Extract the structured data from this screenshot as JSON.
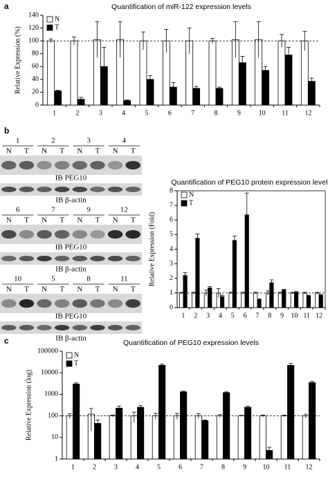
{
  "panels": [
    "a",
    "b",
    "c"
  ],
  "blot": {
    "groups": [
      {
        "numbers": [
          "1",
          "2",
          "3",
          "4"
        ],
        "lanes": [
          "N",
          "T",
          "N",
          "T",
          "N",
          "T",
          "N",
          "T"
        ],
        "target": "IB PEG10",
        "control": "IB β-actin"
      },
      {
        "numbers": [
          "6",
          "7",
          "9",
          "12"
        ],
        "lanes": [
          "N",
          "T",
          "N",
          "T",
          "N",
          "T",
          "N",
          "T"
        ],
        "target": "IB PEG10",
        "control": "IB β-actin"
      },
      {
        "numbers": [
          "10",
          "5",
          "8",
          "11"
        ],
        "lanes": [
          "N",
          "T",
          "N",
          "T",
          "N",
          "T",
          "N",
          "T"
        ],
        "target": "IB PEG10",
        "control": "IB β-actin"
      }
    ]
  },
  "chart_data": [
    {
      "type": "bar",
      "title": "Quantification of miR-122 expression levels",
      "y_label": "Relative Expression (%)",
      "categories": [
        "1",
        "2",
        "3",
        "4",
        "5",
        "6",
        "7",
        "8",
        "9",
        "10",
        "11",
        "12"
      ],
      "series": [
        {
          "name": "N",
          "color": "#ffffff",
          "values": [
            100,
            100,
            102,
            102,
            100,
            100,
            100,
            100,
            102,
            102,
            100,
            100
          ],
          "errors": [
            3,
            6,
            28,
            28,
            14,
            18,
            20,
            4,
            28,
            28,
            10,
            15
          ]
        },
        {
          "name": "T",
          "color": "#000000",
          "values": [
            22,
            9,
            60,
            7,
            40,
            28,
            26,
            26,
            66,
            54,
            78,
            37
          ],
          "errors": [
            1,
            3,
            30,
            1,
            6,
            7,
            3,
            2,
            10,
            6,
            12,
            5
          ]
        }
      ],
      "ylim": [
        0,
        140
      ],
      "yticks": [
        0,
        20,
        40,
        60,
        80,
        100,
        120,
        140
      ],
      "reference_line": 100,
      "legend": "upper left",
      "log_scale": false
    },
    {
      "type": "bar",
      "title": "Quantification of PEG10 protein expression levels",
      "y_label": "Relative Expression (Fold)",
      "categories": [
        "1",
        "2",
        "3",
        "4",
        "5",
        "6",
        "7",
        "8",
        "9",
        "10",
        "11",
        "12"
      ],
      "series": [
        {
          "name": "N",
          "color": "#ffffff",
          "values": [
            1,
            1,
            1,
            1,
            1,
            1,
            1,
            1,
            1,
            1,
            1,
            1
          ],
          "errors": [
            0.05,
            0.05,
            0.2,
            0.3,
            0.05,
            0.05,
            0.05,
            0.15,
            0.05,
            0.05,
            0.05,
            0.05
          ]
        },
        {
          "name": "T",
          "color": "#000000",
          "values": [
            2.2,
            4.75,
            1.35,
            0.75,
            4.6,
            6.35,
            0.55,
            1.7,
            1.2,
            1.05,
            0.8,
            0.85
          ],
          "errors": [
            0.2,
            0.3,
            0.1,
            0.1,
            0.3,
            1.5,
            0.05,
            0.2,
            0.05,
            0.05,
            0.05,
            0.05
          ]
        }
      ],
      "ylim": [
        0,
        8
      ],
      "yticks": [
        0,
        1,
        2,
        3,
        4,
        5,
        6,
        7,
        8
      ],
      "reference_line": 1,
      "legend": "upper left",
      "log_scale": false
    },
    {
      "type": "bar",
      "title": "Quantification of PEG10 expression levels",
      "y_label": "Relative Expression (log)",
      "categories": [
        "1",
        "2",
        "3",
        "4",
        "5",
        "6",
        "7",
        "8",
        "9",
        "10",
        "11",
        "12"
      ],
      "series": [
        {
          "name": "N",
          "color": "#ffffff",
          "values": [
            100,
            120,
            100,
            100,
            100,
            100,
            100,
            100,
            100,
            100,
            100,
            100
          ],
          "errors": [
            25,
            100,
            10,
            50,
            30,
            30,
            25,
            15,
            5,
            10,
            10,
            20
          ]
        },
        {
          "name": "T",
          "color": "#000000",
          "values": [
            3000,
            45,
            230,
            250,
            22000,
            1300,
            60,
            1200,
            250,
            2.5,
            22000,
            3500
          ],
          "errors": [
            400,
            20,
            60,
            50,
            3000,
            100,
            5,
            100,
            30,
            1,
            5000,
            500
          ]
        }
      ],
      "ylim": [
        1,
        100000
      ],
      "yticks": [
        1,
        10,
        100,
        1000,
        10000,
        100000
      ],
      "reference_line": 100,
      "legend": "upper left",
      "log_scale": true
    }
  ]
}
